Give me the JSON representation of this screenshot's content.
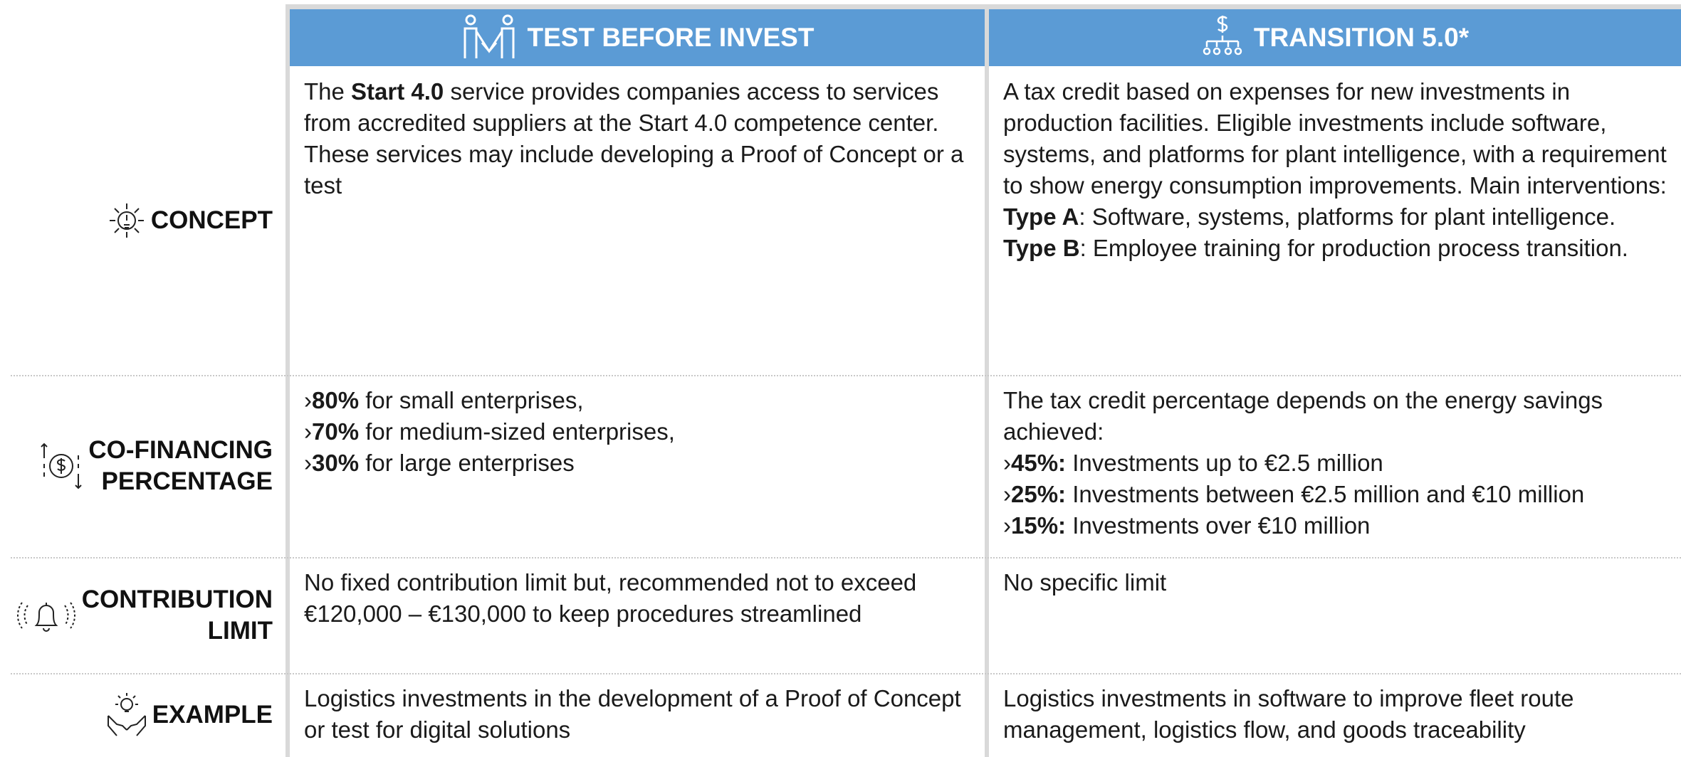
{
  "header": {
    "columns": [
      "TEST BEFORE INVEST",
      "TRANSITION 5.0*"
    ]
  },
  "rows": [
    {
      "label": [
        "CONCEPT"
      ],
      "cells": [
        [
          [
            {
              "text": "The "
            },
            {
              "text": "Start 4.0",
              "bold": true
            },
            {
              "text": " service provides companies access to services from accredited suppliers at the Start 4.0 competence center. These services may include developing a Proof of Concept or a test"
            }
          ]
        ],
        [
          [
            {
              "text": "A tax credit based on expenses for new investments in production facilities. Eligible investments include software, systems, and platforms for plant intelligence, with a requirement to show energy consumption improvements. Main interventions:"
            }
          ],
          [
            {
              "text": "Type A",
              "bold": true
            },
            {
              "text": ": Software, systems, platforms for plant intelligence."
            }
          ],
          [
            {
              "text": "Type B",
              "bold": true
            },
            {
              "text": ": Employee training for production process transition."
            }
          ]
        ]
      ]
    },
    {
      "label": [
        "CO-FINANCING",
        "PERCENTAGE"
      ],
      "cells": [
        [
          [
            {
              "text": "›"
            },
            {
              "text": "80%",
              "bold": true
            },
            {
              "text": " for small enterprises,"
            }
          ],
          [
            {
              "text": "›"
            },
            {
              "text": "70%",
              "bold": true
            },
            {
              "text": " for medium-sized enterprises,"
            }
          ],
          [
            {
              "text": "›"
            },
            {
              "text": "30%",
              "bold": true
            },
            {
              "text": " for large enterprises"
            }
          ]
        ],
        [
          [
            {
              "text": "The tax credit percentage depends on the energy savings achieved:"
            }
          ],
          [
            {
              "text": "›"
            },
            {
              "text": "45%:",
              "bold": true
            },
            {
              "text": " Investments up to €2.5 million"
            }
          ],
          [
            {
              "text": "›"
            },
            {
              "text": "25%:",
              "bold": true
            },
            {
              "text": " Investments between €2.5 million and €10 million"
            }
          ],
          [
            {
              "text": "›"
            },
            {
              "text": "15%:",
              "bold": true
            },
            {
              "text": " Investments over €10 million"
            }
          ]
        ]
      ]
    },
    {
      "label": [
        "CONTRIBUTION",
        "LIMIT"
      ],
      "cells": [
        [
          [
            {
              "text": "No fixed contribution limit but, recommended not to exceed €120,000 – €130,000 to keep procedures streamlined"
            }
          ]
        ],
        [
          [
            {
              "text": "No specific limit"
            }
          ]
        ]
      ]
    },
    {
      "label": [
        "EXAMPLE"
      ],
      "cells": [
        [
          [
            {
              "text": "Logistics investments in the development of a Proof of Concept or test for digital solutions"
            }
          ]
        ],
        [
          [
            {
              "text": "Logistics investments in software to improve fleet route management, logistics flow, and goods traceability"
            }
          ]
        ]
      ]
    }
  ]
}
